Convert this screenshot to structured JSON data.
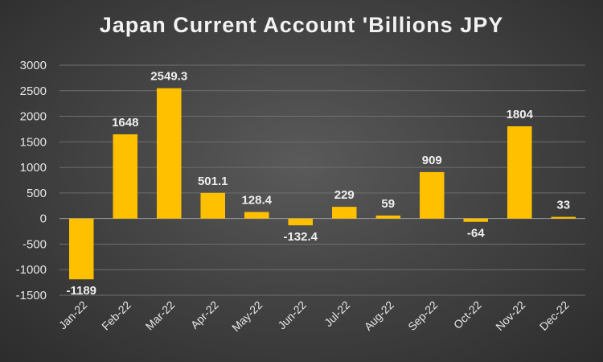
{
  "chart_data": {
    "type": "bar",
    "title": "Japan Current Account 'Billions JPY",
    "categories": [
      "Jan-22",
      "Feb-22",
      "Mar-22",
      "Apr-22",
      "May-22",
      "Jun-22",
      "Jul-22",
      "Aug-22",
      "Sep-22",
      "Oct-22",
      "Nov-22",
      "Dec-22"
    ],
    "values": [
      -1189,
      1648,
      2549.3,
      501.1,
      128.4,
      -132.4,
      229,
      59,
      909,
      -64,
      1804,
      33
    ],
    "data_labels": [
      "-1189",
      "1648",
      "2549.3",
      "501.1",
      "128.4",
      "-132.4",
      "229",
      "59",
      "909",
      "-64",
      "1804",
      "33"
    ],
    "y_ticks": [
      3000,
      2500,
      2000,
      1500,
      1000,
      500,
      0,
      -500,
      -1000,
      -1500
    ],
    "y_tick_labels": [
      "3000",
      "2500",
      "2000",
      "1500",
      "1000",
      "500",
      "0",
      "-500",
      "-1000",
      "-1500"
    ],
    "ylim": [
      -1500,
      3000
    ],
    "xlabel": "",
    "ylabel": "",
    "grid": true,
    "legend": "none",
    "bar_color": "#FFC000",
    "label_color": "#EFEFEF"
  }
}
